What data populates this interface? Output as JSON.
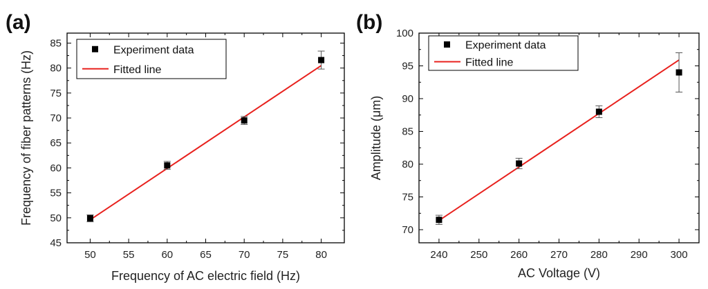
{
  "chart_data": [
    {
      "type": "scatter",
      "panel_label": "(a)",
      "xlabel": "Frequency of AC electric field (Hz)",
      "ylabel": "Frequency of  fiber patterns (Hz)",
      "xlim": [
        47,
        83
      ],
      "ylim": [
        45,
        87
      ],
      "xticks": [
        50,
        55,
        60,
        65,
        70,
        75,
        80
      ],
      "yticks": [
        45,
        50,
        55,
        60,
        65,
        70,
        75,
        80,
        85
      ],
      "series": [
        {
          "name": "Experiment data",
          "marker": "square",
          "color": "#000000",
          "x": [
            50,
            60,
            70,
            80
          ],
          "y": [
            49.9,
            60.5,
            69.5,
            81.6
          ],
          "err": [
            0.7,
            0.8,
            0.8,
            1.8
          ]
        },
        {
          "name": "Fitted line",
          "kind": "line",
          "color": "#e8211d",
          "x": [
            50,
            80
          ],
          "y": [
            49.6,
            80.5
          ]
        }
      ],
      "legend": {
        "position": "top-left",
        "entries": [
          "Experiment data",
          "Fitted line"
        ]
      }
    },
    {
      "type": "scatter",
      "panel_label": "(b)",
      "xlabel": "AC Voltage (V)",
      "ylabel": "Amplitude (μm)",
      "xlim": [
        235,
        305
      ],
      "ylim": [
        68,
        100
      ],
      "xticks": [
        240,
        250,
        260,
        270,
        280,
        290,
        300
      ],
      "yticks": [
        70,
        75,
        80,
        85,
        90,
        95,
        100
      ],
      "series": [
        {
          "name": "Experiment data",
          "marker": "square",
          "color": "#000000",
          "x": [
            240,
            260,
            280,
            300
          ],
          "y": [
            71.5,
            80.1,
            88.0,
            94.0
          ],
          "err": [
            0.7,
            0.8,
            0.9,
            3.0
          ]
        },
        {
          "name": "Fitted line",
          "kind": "line",
          "color": "#e8211d",
          "x": [
            240,
            300
          ],
          "y": [
            71.4,
            95.9
          ]
        }
      ],
      "legend": {
        "position": "top-left",
        "entries": [
          "Experiment data",
          "Fitted line"
        ]
      }
    }
  ]
}
